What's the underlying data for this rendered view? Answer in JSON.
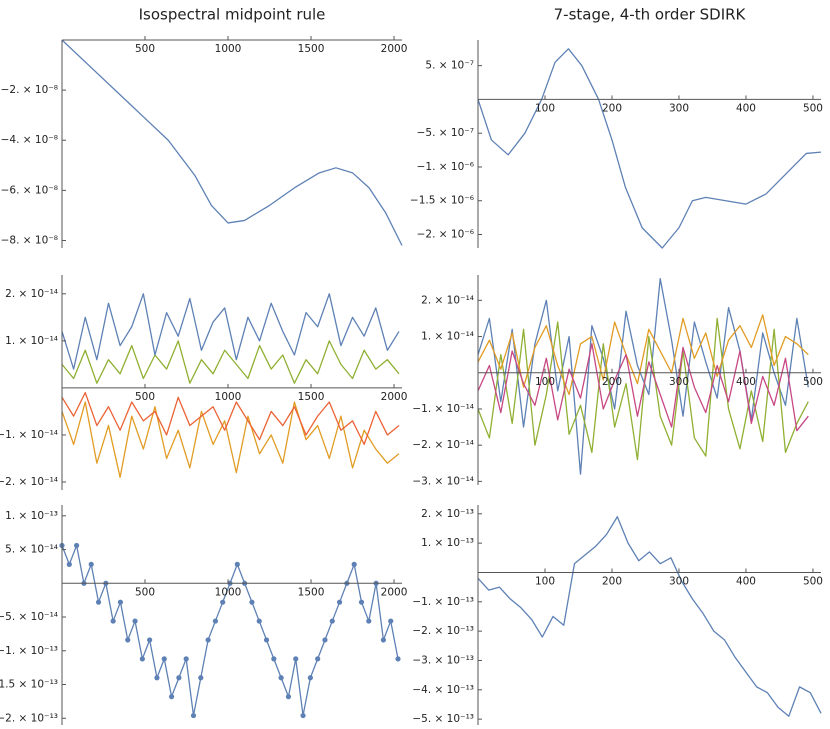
{
  "chart_data": [
    {
      "type": "line",
      "title": "Isospectral midpoint rule",
      "x": [
        0,
        160,
        320,
        480,
        640,
        800,
        900,
        1000,
        1100,
        1250,
        1400,
        1550,
        1650,
        1750,
        1850,
        1950,
        2048
      ],
      "series": [
        {
          "color": "#5E81B5",
          "values": [
            0,
            -1e-08,
            -2e-08,
            -3e-08,
            -4e-08,
            -5.4e-08,
            -6.6e-08,
            -7.3e-08,
            -7.2e-08,
            -6.6e-08,
            -5.9e-08,
            -5.3e-08,
            -5.1e-08,
            -5.3e-08,
            -5.9e-08,
            -6.9e-08,
            -8.2e-08
          ]
        }
      ],
      "xlim": [
        0,
        2048
      ],
      "ylim": [
        -8.3e-08,
        0
      ],
      "xticks": [
        500,
        1000,
        1500,
        2000
      ],
      "yticks": [
        {
          "value": -2e-08,
          "label": "−2. × 10⁻⁸"
        },
        {
          "value": -4e-08,
          "label": "−4. × 10⁻⁸"
        },
        {
          "value": -6e-08,
          "label": "−6. × 10⁻⁸"
        },
        {
          "value": -8e-08,
          "label": "−8. × 10⁻⁸"
        }
      ]
    },
    {
      "type": "line",
      "title": "7-stage, 4-th order SDIRK",
      "x": [
        0,
        20,
        45,
        70,
        95,
        115,
        135,
        155,
        180,
        200,
        220,
        245,
        275,
        300,
        320,
        340,
        370,
        400,
        430,
        460,
        490,
        512
      ],
      "series": [
        {
          "color": "#5E81B5",
          "values": [
            0,
            -6e-07,
            -8.2e-07,
            -5e-07,
            0,
            5.5e-07,
            7.5e-07,
            5e-07,
            0,
            -6e-07,
            -1.3e-06,
            -1.9e-06,
            -2.2e-06,
            -1.9e-06,
            -1.5e-06,
            -1.45e-06,
            -1.5e-06,
            -1.55e-06,
            -1.4e-06,
            -1.1e-06,
            -8e-07,
            -7.8e-07
          ]
        }
      ],
      "xlim": [
        0,
        512
      ],
      "ylim": [
        -2.2e-06,
        8.8e-07
      ],
      "xticks": [
        100,
        200,
        300,
        400,
        500
      ],
      "yticks": [
        {
          "value": 5e-07,
          "label": "5. × 10⁻⁷"
        },
        {
          "value": -5e-07,
          "label": "−5. × 10⁻⁷"
        },
        {
          "value": -1e-06,
          "label": "−1. × 10⁻⁶"
        },
        {
          "value": -1.5e-06,
          "label": "−1.5 × 10⁻⁶"
        },
        {
          "value": -2e-06,
          "label": "−2. × 10⁻⁶"
        }
      ]
    },
    {
      "type": "line",
      "x": [
        0,
        70,
        140,
        210,
        280,
        350,
        420,
        490,
        560,
        630,
        700,
        770,
        840,
        910,
        980,
        1050,
        1120,
        1190,
        1260,
        1330,
        1400,
        1470,
        1540,
        1610,
        1680,
        1750,
        1820,
        1890,
        1960,
        2030
      ],
      "series": [
        {
          "color": "#E19C24",
          "values": [
            -5e-15,
            -1.2e-14,
            -3e-15,
            -1.6e-14,
            -8e-15,
            -1.9e-14,
            -6e-15,
            -1.3e-14,
            -4e-15,
            -1.5e-14,
            -9e-15,
            -1.7e-14,
            -5e-15,
            -1.2e-14,
            -7e-15,
            -1.8e-14,
            -6e-15,
            -1.4e-14,
            -1e-14,
            -1.6e-14,
            -3e-15,
            -1.1e-14,
            -8e-15,
            -1.5e-14,
            -6e-15,
            -1.7e-14,
            -9e-15,
            -1.3e-14,
            -1.6e-14,
            -1.4e-14
          ]
        },
        {
          "color": "#EB6235",
          "values": [
            -2e-15,
            -6e-15,
            -1e-15,
            -8e-15,
            -4e-15,
            -9e-15,
            -3e-15,
            -7e-15,
            -5e-15,
            -1e-14,
            -2e-15,
            -8e-15,
            -6e-15,
            -4e-15,
            -9e-15,
            -3e-15,
            -7e-15,
            -1.1e-14,
            -5e-15,
            -8e-15,
            -4e-15,
            -1e-14,
            -6e-15,
            -3e-15,
            -9e-15,
            -7e-15,
            -1.2e-14,
            -5e-15,
            -1e-14,
            -8e-15
          ]
        },
        {
          "color": "#8FB032",
          "values": [
            5e-15,
            2e-15,
            8e-15,
            1e-15,
            6e-15,
            3e-15,
            9e-15,
            2e-15,
            7e-15,
            4e-15,
            1e-14,
            1e-15,
            6e-15,
            3e-15,
            8e-15,
            5e-15,
            2e-15,
            9e-15,
            4e-15,
            7e-15,
            1e-15,
            6e-15,
            3e-15,
            1e-14,
            5e-15,
            2e-15,
            8e-15,
            4e-15,
            6e-15,
            3e-15
          ]
        },
        {
          "color": "#5E81B5",
          "values": [
            1.2e-14,
            4e-15,
            1.5e-14,
            6e-15,
            1.8e-14,
            9e-15,
            1.3e-14,
            2e-14,
            7e-15,
            1.6e-14,
            1.1e-14,
            1.9e-14,
            8e-15,
            1.4e-14,
            1.7e-14,
            6e-15,
            1.5e-14,
            1e-14,
            1.8e-14,
            1.2e-14,
            7e-15,
            1.6e-14,
            1.3e-14,
            2e-14,
            9e-15,
            1.5e-14,
            1.1e-14,
            1.7e-14,
            8e-15,
            1.2e-14
          ]
        }
      ],
      "xlim": [
        0,
        2048
      ],
      "ylim": [
        -2.17e-14,
        2.4e-14
      ],
      "xticks": [
        500,
        1000,
        1500,
        2000
      ],
      "yticks": [
        {
          "value": 2e-14,
          "label": "2. × 10⁻¹⁴"
        },
        {
          "value": 1e-14,
          "label": "1. × 10⁻¹⁴"
        },
        {
          "value": -1e-14,
          "label": "−1. × 10⁻¹⁴"
        },
        {
          "value": -2e-14,
          "label": "−2. × 10⁻¹⁴"
        }
      ]
    },
    {
      "type": "line",
      "x": [
        0,
        17,
        34,
        51,
        68,
        85,
        102,
        119,
        136,
        153,
        170,
        187,
        204,
        221,
        238,
        255,
        272,
        289,
        306,
        323,
        340,
        357,
        374,
        391,
        408,
        425,
        442,
        459,
        476,
        493
      ],
      "series": [
        {
          "color": "#5E81B5",
          "values": [
            5e-15,
            1.5e-14,
            -8e-15,
            1.2e-14,
            -1.5e-14,
            8e-15,
            2e-14,
            -5e-15,
            1e-14,
            -2.8e-14,
            1.3e-14,
            4e-15,
            -1e-14,
            1.7e-14,
            2e-15,
            -6e-15,
            2.6e-14,
            9e-15,
            -1.2e-14,
            1.4e-14,
            3e-15,
            -7e-15,
            1.8e-14,
            6e-15,
            -1.3e-14,
            1.1e-14,
            0,
            -9e-15,
            1.5e-14,
            -4e-15
          ]
        },
        {
          "color": "#8FB032",
          "values": [
            -1e-14,
            -1.8e-14,
            5e-15,
            -1.4e-14,
            1.2e-14,
            -2e-14,
            -6e-15,
            1.4e-14,
            -1.7e-14,
            -9e-15,
            -2.2e-14,
            8e-15,
            -1.5e-14,
            -3e-15,
            -2.4e-14,
            1e-14,
            -1.2e-14,
            -2e-14,
            6e-15,
            -1.8e-14,
            -2.3e-14,
            1.5e-14,
            -1e-14,
            -2.1e-14,
            -5e-15,
            -1.9e-14,
            1.2e-14,
            -2.2e-14,
            -1.4e-14,
            -8e-15
          ]
        },
        {
          "color": "#E19C24",
          "values": [
            3e-15,
            9e-15,
            1e-15,
            1.1e-14,
            -4e-15,
            7e-15,
            1.3e-14,
            2e-15,
            -6e-15,
            8e-15,
            1e-14,
            -2e-15,
            1.4e-14,
            5e-15,
            -3e-15,
            1.2e-14,
            6e-15,
            0,
            1.5e-14,
            4e-15,
            1.1e-14,
            -1e-15,
            9e-15,
            1.3e-14,
            7e-15,
            1.6e-14,
            2e-15,
            1e-14,
            8e-15,
            5e-15
          ]
        },
        {
          "color": "#C74883",
          "values": [
            -5e-15,
            2e-15,
            -1.1e-14,
            6e-15,
            -3e-15,
            -9e-15,
            4e-15,
            -1.3e-14,
            1e-15,
            -7e-15,
            8e-15,
            -1e-14,
            -2e-15,
            5e-15,
            -1.2e-14,
            3e-15,
            -6e-15,
            -1.5e-14,
            7e-15,
            -4e-15,
            -1.1e-14,
            2e-15,
            -8e-15,
            6e-15,
            -1.4e-14,
            -1e-15,
            -9e-15,
            4e-15,
            -1.6e-14,
            -1.2e-14
          ]
        }
      ],
      "xlim": [
        0,
        512
      ],
      "ylim": [
        -3.1e-14,
        2.7e-14
      ],
      "xticks": [
        100,
        200,
        300,
        400,
        500
      ],
      "yticks": [
        {
          "value": 2e-14,
          "label": "2. × 10⁻¹⁴"
        },
        {
          "value": 1e-14,
          "label": "1. × 10⁻¹⁴"
        },
        {
          "value": -1e-14,
          "label": "−1. × 10⁻¹⁴"
        },
        {
          "value": -2e-14,
          "label": "−2. × 10⁻¹⁴"
        },
        {
          "value": -3e-14,
          "label": "−3. × 10⁻¹⁴"
        }
      ]
    },
    {
      "type": "line",
      "markers": true,
      "x": [
        0,
        44,
        88,
        132,
        176,
        220,
        264,
        308,
        352,
        396,
        440,
        484,
        528,
        572,
        616,
        660,
        704,
        748,
        792,
        836,
        880,
        924,
        968,
        1012,
        1056,
        1100,
        1144,
        1188,
        1232,
        1276,
        1320,
        1364,
        1408,
        1452,
        1496,
        1540,
        1584,
        1628,
        1672,
        1716,
        1760,
        1804,
        1848,
        1892,
        1936,
        1980,
        2024
      ],
      "series": [
        {
          "color": "#5E81B5",
          "values": [
            5.6e-14,
            2.8e-14,
            5.6e-14,
            0,
            2.8e-14,
            -2.8e-14,
            0,
            -5.6e-14,
            -2.8e-14,
            -8.4e-14,
            -5.6e-14,
            -1.12e-13,
            -8.4e-14,
            -1.4e-13,
            -1.12e-13,
            -1.68e-13,
            -1.4e-13,
            -1.12e-13,
            -1.96e-13,
            -1.4e-13,
            -8.4e-14,
            -5.6e-14,
            -2.8e-14,
            0,
            2.8e-14,
            0,
            -2.8e-14,
            -5.6e-14,
            -8.4e-14,
            -1.12e-13,
            -1.4e-13,
            -1.68e-13,
            -1.12e-13,
            -1.96e-13,
            -1.4e-13,
            -1.12e-13,
            -8.4e-14,
            -5.6e-14,
            -2.8e-14,
            0,
            2.8e-14,
            -2.8e-14,
            -5.6e-14,
            0,
            -8.4e-14,
            -5.6e-14,
            -1.12e-13
          ]
        }
      ],
      "xlim": [
        0,
        2048
      ],
      "ylim": [
        -2.1e-13,
        1.16e-13
      ],
      "xticks": [
        500,
        1000,
        1500,
        2000
      ],
      "yticks": [
        {
          "value": 1e-13,
          "label": "1. × 10⁻¹³"
        },
        {
          "value": 5e-14,
          "label": "5. × 10⁻¹⁴"
        },
        {
          "value": -5e-14,
          "label": "−5. × 10⁻¹⁴"
        },
        {
          "value": -1e-13,
          "label": "−1. × 10⁻¹³"
        },
        {
          "value": -1.5e-13,
          "label": "−1.5 × 10⁻¹³"
        },
        {
          "value": -2e-13,
          "label": "−2. × 10⁻¹³"
        }
      ]
    },
    {
      "type": "line",
      "x": [
        0,
        16,
        32,
        48,
        64,
        80,
        96,
        112,
        128,
        144,
        160,
        176,
        192,
        208,
        224,
        240,
        256,
        272,
        288,
        304,
        320,
        336,
        352,
        368,
        384,
        400,
        416,
        432,
        448,
        464,
        480,
        496,
        512
      ],
      "series": [
        {
          "color": "#5E81B5",
          "values": [
            -2e-14,
            -6e-14,
            -5e-14,
            -9e-14,
            -1.2e-13,
            -1.6e-13,
            -2.2e-13,
            -1.5e-13,
            -1.8e-13,
            3e-14,
            6e-14,
            9e-14,
            1.3e-13,
            1.9e-13,
            1e-13,
            4e-14,
            7e-14,
            3e-14,
            5e-14,
            -3e-14,
            -9e-14,
            -1.4e-13,
            -2e-13,
            -2.3e-13,
            -2.9e-13,
            -3.4e-13,
            -3.9e-13,
            -4.1e-13,
            -4.6e-13,
            -4.9e-13,
            -3.9e-13,
            -4.1e-13,
            -4.8e-13
          ]
        }
      ],
      "xlim": [
        0,
        512
      ],
      "ylim": [
        -5.2e-13,
        2.3e-13
      ],
      "xticks": [
        100,
        200,
        300,
        400,
        500
      ],
      "yticks": [
        {
          "value": 2e-13,
          "label": "2. × 10⁻¹³"
        },
        {
          "value": 1e-13,
          "label": "1. × 10⁻¹³"
        },
        {
          "value": -1e-13,
          "label": "−1. × 10⁻¹³"
        },
        {
          "value": -2e-13,
          "label": "−2. × 10⁻¹³"
        },
        {
          "value": -3e-13,
          "label": "−3. × 10⁻¹³"
        },
        {
          "value": -4e-13,
          "label": "−4. × 10⁻¹³"
        },
        {
          "value": -5e-13,
          "label": "−5. × 10⁻¹³"
        }
      ]
    }
  ]
}
